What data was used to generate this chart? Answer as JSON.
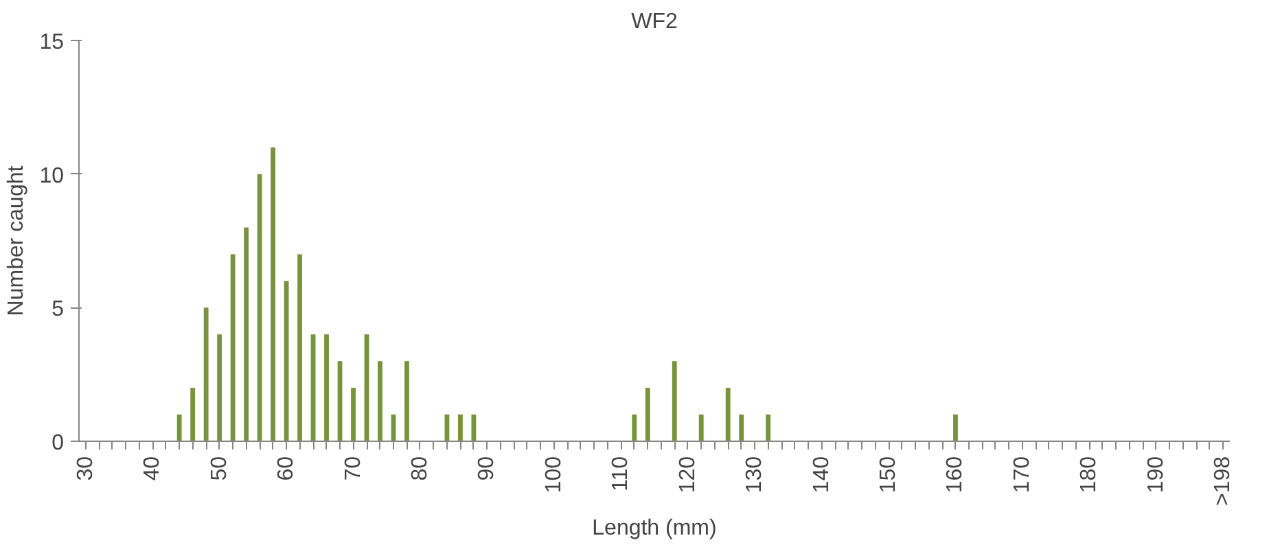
{
  "chart_data": {
    "type": "bar",
    "title": "WF2",
    "xlabel": "Length (mm)",
    "ylabel": "Number caught",
    "color": "#77933c",
    "categories": [
      "30",
      null,
      null,
      null,
      null,
      "40",
      null,
      null,
      null,
      null,
      "50",
      null,
      null,
      null,
      null,
      "60",
      null,
      null,
      null,
      null,
      "70",
      null,
      null,
      null,
      null,
      "80",
      null,
      null,
      null,
      null,
      "90",
      null,
      null,
      null,
      null,
      "100",
      null,
      null,
      null,
      null,
      "110",
      null,
      null,
      null,
      null,
      "120",
      null,
      null,
      null,
      null,
      "130",
      null,
      null,
      null,
      null,
      "140",
      null,
      null,
      null,
      null,
      "150",
      null,
      null,
      null,
      null,
      "160",
      null,
      null,
      null,
      null,
      "170",
      null,
      null,
      null,
      null,
      "180",
      null,
      null,
      null,
      null,
      "190",
      null,
      null,
      null,
      null,
      ">198"
    ],
    "values": [
      0,
      0,
      0,
      0,
      0,
      0,
      0,
      1,
      2,
      5,
      4,
      7,
      8,
      10,
      11,
      6,
      7,
      4,
      4,
      3,
      2,
      4,
      3,
      1,
      3,
      0,
      0,
      1,
      1,
      1,
      0,
      0,
      0,
      0,
      0,
      0,
      0,
      0,
      0,
      0,
      0,
      1,
      2,
      0,
      3,
      0,
      1,
      0,
      2,
      1,
      0,
      1,
      0,
      0,
      0,
      0,
      0,
      0,
      0,
      0,
      0,
      0,
      0,
      0,
      0,
      1,
      0,
      0,
      0,
      0,
      0,
      0,
      0,
      0,
      0,
      0,
      0,
      0,
      0,
      0,
      0,
      0,
      0,
      0,
      0,
      0
    ],
    "ylim": [
      0,
      15
    ],
    "yticks": [
      0,
      5,
      10,
      15
    ],
    "grid": false
  }
}
